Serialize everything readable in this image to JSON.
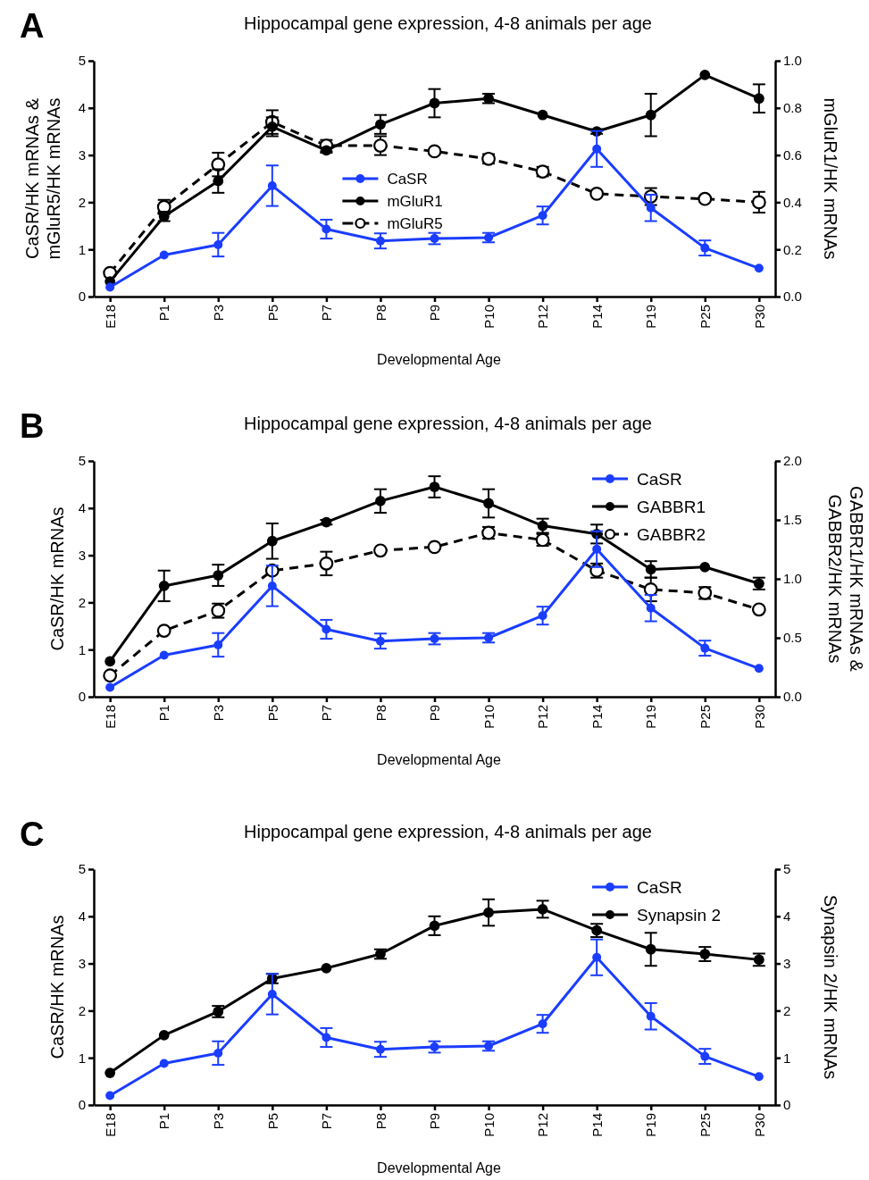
{
  "chart_data": [
    {
      "type": "line",
      "title": "Hippocampal gene expression, 4-8 animals per age",
      "annotations": [
        "A"
      ],
      "xlabel": "Developmental Age",
      "ylabel": "CaSR/HK mRNAs &\nmGluR5/HK mRNAs",
      "y2label": "mGluR1/HK mRNAs",
      "categories": [
        "E18",
        "P1",
        "P3",
        "P5",
        "P7",
        "P8",
        "P9",
        "P10",
        "P12",
        "P14",
        "P19",
        "P25",
        "P30"
      ],
      "ylim": [
        0,
        5
      ],
      "yticks": [
        0,
        1,
        2,
        3,
        4,
        5
      ],
      "y2lim": [
        0,
        1
      ],
      "y2ticks": [
        {
          "value": 0,
          "label": "0.0"
        },
        {
          "value": 0.2,
          "label": "0.2"
        },
        {
          "value": 0.4,
          "label": "0.4"
        },
        {
          "value": 0.6,
          "label": "0.6"
        },
        {
          "value": 0.8,
          "label": "0.8"
        },
        {
          "value": 1,
          "label": "1.0"
        }
      ],
      "legend": "center",
      "marker": "circle",
      "grid": false,
      "series": [
        {
          "name": "CaSR",
          "color": "#1a3dff",
          "values": [
            0.2,
            0.88,
            1.1,
            2.35,
            1.43,
            1.18,
            1.23,
            1.25,
            1.72,
            3.13,
            1.88,
            1.03,
            0.6
          ],
          "errors": [
            null,
            null,
            0.25,
            0.43,
            0.2,
            0.16,
            0.12,
            0.1,
            0.19,
            0.38,
            0.28,
            0.16,
            null
          ]
        },
        {
          "name": "mGluR1",
          "color": "#000000",
          "axis": "y2",
          "values": [
            0.064,
            0.34,
            0.49,
            0.72,
            0.62,
            0.73,
            0.82,
            0.84,
            0.77,
            0.7,
            0.77,
            0.94,
            0.84
          ],
          "errors": [
            null,
            0.02,
            0.05,
            0.04,
            0.01,
            0.04,
            0.06,
            0.02,
            null,
            0.01,
            0.09,
            null,
            0.06
          ]
        },
        {
          "name": "mGluR5",
          "color": "#000000",
          "line_style": "dashed",
          "values": [
            0.5,
            1.9,
            2.8,
            3.7,
            3.2,
            3.2,
            3.08,
            2.92,
            2.65,
            2.18,
            2.12,
            2.07,
            2.0
          ],
          "errors": [
            null,
            0.15,
            0.25,
            0.25,
            0.12,
            0.2,
            null,
            0.1,
            0.1,
            null,
            0.18,
            null,
            0.22
          ]
        }
      ]
    },
    {
      "type": "line",
      "title": "Hippocampal gene expression, 4-8 animals per age",
      "annotations": [
        "B"
      ],
      "xlabel": "Developmental Age",
      "ylabel": "CaSR/HK mRNAs",
      "y2label": "GABBR1/HK mRNAs &\nGABBR2/HK mRNAs",
      "categories": [
        "E18",
        "P1",
        "P3",
        "P5",
        "P7",
        "P8",
        "P9",
        "P10",
        "P12",
        "P14",
        "P19",
        "P25",
        "P30"
      ],
      "ylim": [
        0,
        5
      ],
      "yticks": [
        0,
        1,
        2,
        3,
        4,
        5
      ],
      "y2lim": [
        0,
        2
      ],
      "y2ticks": [
        {
          "value": 0,
          "label": "0.0"
        },
        {
          "value": 0.5,
          "label": "0.5"
        },
        {
          "value": 1,
          "label": "1.0"
        },
        {
          "value": 1.5,
          "label": "1.5"
        },
        {
          "value": 2,
          "label": "2.0"
        }
      ],
      "legend": "top right",
      "marker": "circle",
      "grid": false,
      "series": [
        {
          "name": "CaSR",
          "color": "#1a3dff",
          "values": [
            0.2,
            0.88,
            1.1,
            2.35,
            1.43,
            1.18,
            1.23,
            1.25,
            1.72,
            3.13,
            1.88,
            1.03,
            0.6
          ],
          "errors": [
            null,
            null,
            0.25,
            0.43,
            0.2,
            0.16,
            0.12,
            0.1,
            0.19,
            0.38,
            0.28,
            0.16,
            null
          ]
        },
        {
          "name": "GABBR1",
          "color": "#000000",
          "axis": "y2",
          "values": [
            0.3,
            0.94,
            1.03,
            1.32,
            1.48,
            1.66,
            1.78,
            1.64,
            1.45,
            1.38,
            1.08,
            1.1,
            0.96
          ],
          "errors": [
            null,
            0.13,
            0.09,
            0.15,
            0.02,
            0.1,
            0.09,
            0.12,
            0.06,
            0.08,
            0.07,
            null,
            0.05
          ]
        },
        {
          "name": "GABBR2",
          "color": "#000000",
          "axis": "y2",
          "line_style": "dashed",
          "values": [
            0.18,
            0.56,
            0.73,
            1.07,
            1.13,
            1.24,
            1.27,
            1.39,
            1.33,
            1.07,
            0.91,
            0.88,
            0.74
          ],
          "errors": [
            null,
            null,
            0.06,
            null,
            0.1,
            null,
            null,
            0.05,
            0.05,
            0.06,
            0.1,
            0.05,
            null
          ]
        }
      ]
    },
    {
      "type": "line",
      "title": "Hippocampal gene expression, 4-8 animals per age",
      "annotations": [
        "C"
      ],
      "xlabel": "Developmental Age",
      "ylabel": "CaSR/HK mRNAs",
      "y2label": "Synapsin 2/HK mRNAs",
      "categories": [
        "E18",
        "P1",
        "P3",
        "P5",
        "P7",
        "P8",
        "P9",
        "P10",
        "P12",
        "P14",
        "P19",
        "P25",
        "P30"
      ],
      "ylim": [
        0,
        5
      ],
      "yticks": [
        0,
        1,
        2,
        3,
        4,
        5
      ],
      "y2lim": [
        0,
        5
      ],
      "y2ticks": [
        0,
        1,
        2,
        3,
        4,
        5
      ],
      "legend": "top right",
      "marker": "circle",
      "grid": false,
      "series": [
        {
          "name": "CaSR",
          "color": "#1a3dff",
          "values": [
            0.2,
            0.88,
            1.1,
            2.35,
            1.43,
            1.18,
            1.23,
            1.25,
            1.72,
            3.13,
            1.88,
            1.03,
            0.6
          ],
          "errors": [
            null,
            null,
            0.25,
            0.43,
            0.2,
            0.16,
            0.12,
            0.1,
            0.19,
            0.38,
            0.28,
            0.16,
            null
          ]
        },
        {
          "name": "Synapsin 2",
          "color": "#000000",
          "axis": "y2",
          "values": [
            0.68,
            1.48,
            1.98,
            2.68,
            2.9,
            3.2,
            3.8,
            4.08,
            4.15,
            3.7,
            3.3,
            3.2,
            3.08
          ],
          "errors": [
            null,
            null,
            0.12,
            0.1,
            null,
            0.1,
            0.2,
            0.28,
            0.18,
            0.14,
            0.35,
            0.15,
            0.13
          ]
        }
      ]
    }
  ]
}
